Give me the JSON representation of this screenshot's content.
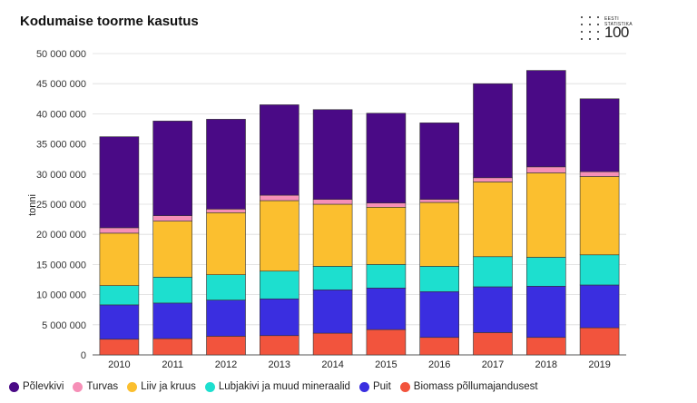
{
  "header": {
    "title": "Kodumaise toorme kasutus",
    "logo_line1": "EESTI",
    "logo_line2": "STATISTIKA",
    "logo_number": "100"
  },
  "chart_data": {
    "type": "bar",
    "stacked": true,
    "title": "Kodumaise toorme kasutus",
    "xlabel": "",
    "ylabel": "tonni",
    "ylim": [
      0,
      50000000
    ],
    "yticks": [
      "0",
      "5 000 000",
      "10 000 000",
      "15 000 000",
      "20 000 000",
      "25 000 000",
      "30 000 000",
      "35 000 000",
      "40 000 000",
      "45 000 000",
      "50 000 000"
    ],
    "categories": [
      "2010",
      "2011",
      "2012",
      "2013",
      "2014",
      "2015",
      "2016",
      "2017",
      "2018",
      "2019"
    ],
    "series": [
      {
        "name": "Biomass põllumajandusest",
        "color": "#f2543d",
        "values": [
          2600000,
          2700000,
          3100000,
          3200000,
          3600000,
          4200000,
          2900000,
          3700000,
          2900000,
          4500000
        ]
      },
      {
        "name": "Puit",
        "color": "#3a2ee0",
        "values": [
          5700000,
          5900000,
          6000000,
          6100000,
          7200000,
          6900000,
          7600000,
          7600000,
          8500000,
          7100000
        ]
      },
      {
        "name": "Lubjakivi ja muud mineraalid",
        "color": "#1ddfcf",
        "values": [
          3200000,
          4300000,
          4200000,
          4600000,
          3900000,
          3900000,
          4200000,
          5000000,
          4800000,
          5000000
        ]
      },
      {
        "name": "Liiv ja kruus",
        "color": "#fbbf2f",
        "values": [
          8700000,
          9300000,
          10300000,
          11700000,
          10300000,
          9500000,
          10600000,
          12400000,
          14000000,
          13000000
        ]
      },
      {
        "name": "Turvas",
        "color": "#f68fb7",
        "values": [
          900000,
          900000,
          600000,
          900000,
          800000,
          700000,
          500000,
          700000,
          1000000,
          800000
        ]
      },
      {
        "name": "Põlevkivi",
        "color": "#4a0a86",
        "values": [
          15100000,
          15700000,
          14900000,
          15000000,
          14900000,
          14900000,
          12700000,
          15600000,
          16000000,
          12100000
        ]
      }
    ],
    "legend_order": [
      "Põlevkivi",
      "Turvas",
      "Liiv ja kruus",
      "Lubjakivi ja muud mineraalid",
      "Puit",
      "Biomass põllumajandusest"
    ],
    "legend_position": "bottom-left",
    "grid": true
  }
}
